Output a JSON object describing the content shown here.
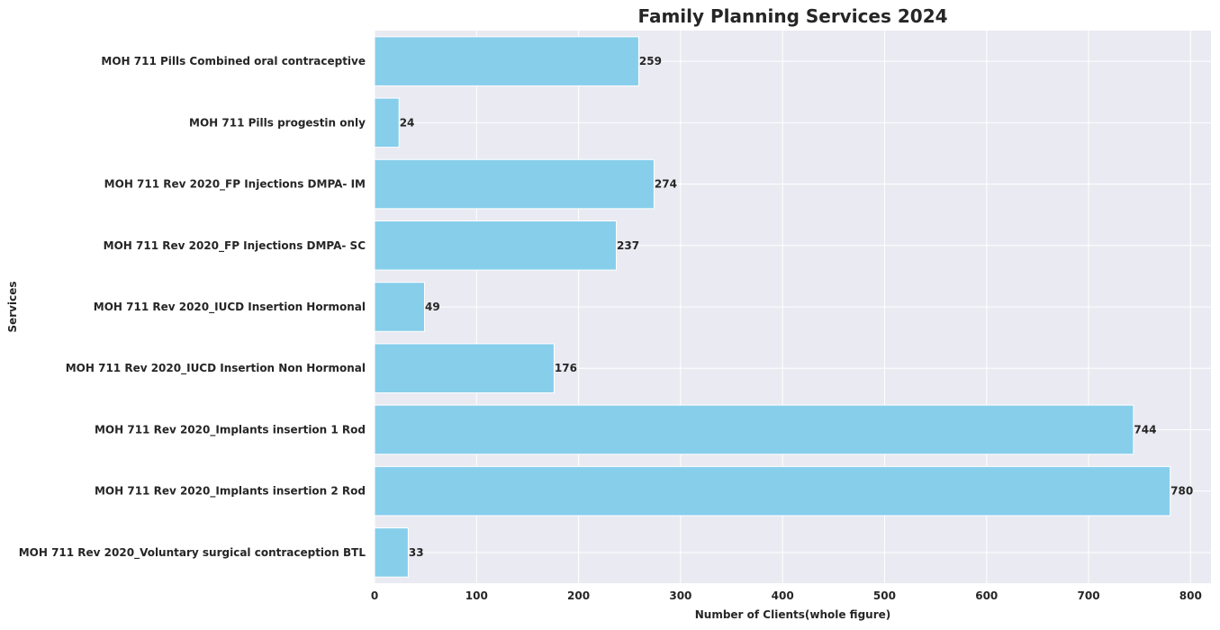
{
  "chart_data": {
    "type": "bar",
    "orientation": "horizontal",
    "title": "Family Planning Services 2024",
    "xlabel": "Number of Clients(whole figure)",
    "ylabel": "Services",
    "xlim": [
      0,
      820
    ],
    "xticks": [
      0,
      100,
      200,
      300,
      400,
      500,
      600,
      700,
      800
    ],
    "grid": true,
    "legend": "none",
    "colors": {
      "bar": "#87CEEB",
      "plot_bg": "#EAEAF2",
      "grid": "#FFFFFF",
      "text": "#262626"
    },
    "categories": [
      "MOH 711 Pills Combined oral contraceptive",
      "MOH 711 Pills progestin only",
      "MOH 711 Rev 2020_FP Injections DMPA- IM",
      "MOH 711 Rev 2020_FP Injections DMPA- SC",
      "MOH 711 Rev 2020_IUCD Insertion Hormonal",
      "MOH 711 Rev 2020_IUCD Insertion Non Hormonal",
      "MOH 711 Rev 2020_Implants insertion 1 Rod",
      "MOH 711 Rev 2020_Implants insertion 2 Rod",
      "MOH 711 Rev 2020_Voluntary surgical contraception BTL"
    ],
    "values": [
      259,
      24,
      274,
      237,
      49,
      176,
      744,
      780,
      33
    ]
  }
}
